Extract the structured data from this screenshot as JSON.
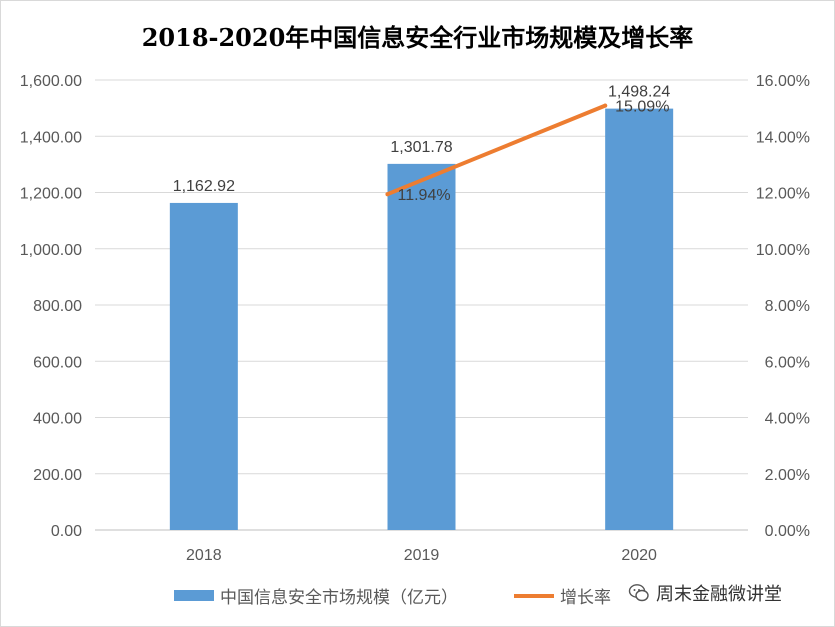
{
  "chart_data": {
    "type": "bar",
    "title": "2018-2020年中国信息安全行业市场规模及增长率",
    "categories": [
      "2018",
      "2019",
      "2020"
    ],
    "series": [
      {
        "name": "中国信息安全市场规模（亿元）",
        "type": "bar",
        "axis": "left",
        "values": [
          1162.92,
          1301.78,
          1498.24
        ],
        "labels": [
          "1,162.92",
          "1,301.78",
          "1,498.24"
        ],
        "color": "#5b9bd5"
      },
      {
        "name": "增长率",
        "type": "line",
        "axis": "right",
        "values": [
          null,
          11.94,
          15.09
        ],
        "labels": [
          "",
          "11.94%",
          "15.09%"
        ],
        "color": "#ed7d31"
      }
    ],
    "y_left": {
      "ylim": [
        0,
        1600
      ],
      "ticks": [
        "0.00",
        "200.00",
        "400.00",
        "600.00",
        "800.00",
        "1,000.00",
        "1,200.00",
        "1,400.00",
        "1,600.00"
      ]
    },
    "y_right": {
      "ylim": [
        0,
        16
      ],
      "ticks": [
        "0.00%",
        "2.00%",
        "4.00%",
        "6.00%",
        "8.00%",
        "10.00%",
        "12.00%",
        "14.00%",
        "16.00%"
      ]
    },
    "grid": true,
    "legend_position": "bottom"
  },
  "watermark": {
    "text": "周末金融微讲堂",
    "icon": "wechat-icon"
  }
}
